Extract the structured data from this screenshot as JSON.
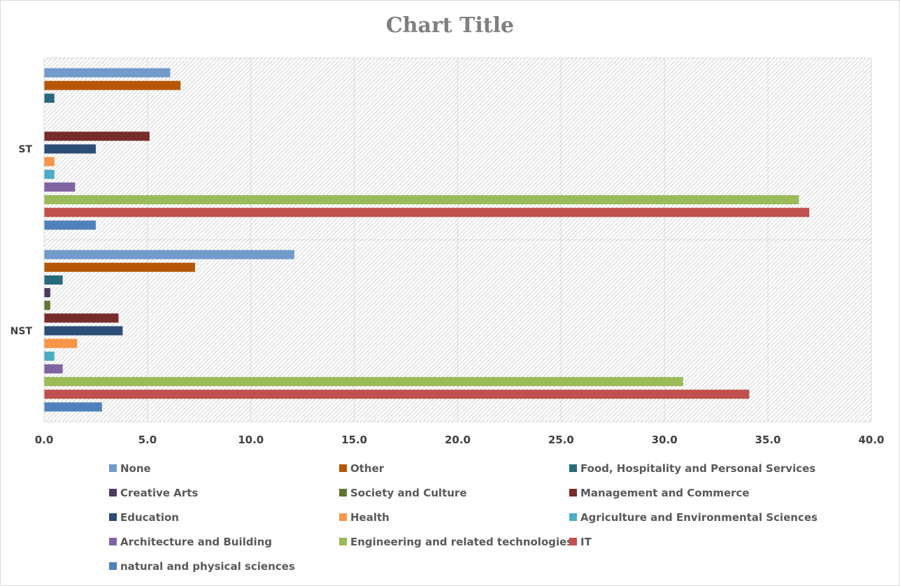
{
  "chart_data": {
    "type": "bar",
    "orientation": "horizontal",
    "title": "Chart Title",
    "categories": [
      "NST",
      "ST"
    ],
    "xlim": [
      0,
      40
    ],
    "x_ticks": [
      "0.0",
      "5.0",
      "10.0",
      "15.0",
      "20.0",
      "25.0",
      "30.0",
      "35.0",
      "40.0"
    ],
    "grid": true,
    "legend_position": "bottom",
    "series": [
      {
        "name": "natural and physical sciences",
        "color": "#4f81bd",
        "values": [
          2.8,
          2.5
        ]
      },
      {
        "name": "IT",
        "color": "#c0504d",
        "values": [
          34.1,
          37.0
        ]
      },
      {
        "name": "Engineering and related technologies",
        "color": "#9bbb59",
        "values": [
          30.9,
          36.5
        ]
      },
      {
        "name": "Architecture and Building",
        "color": "#8064a2",
        "values": [
          0.9,
          1.5
        ]
      },
      {
        "name": "Agriculture and Environmental Sciences",
        "color": "#4bacc6",
        "values": [
          0.5,
          0.5
        ]
      },
      {
        "name": "Health",
        "color": "#f79646",
        "values": [
          1.6,
          0.5
        ]
      },
      {
        "name": "Education",
        "color": "#2c4d75",
        "values": [
          3.8,
          2.5
        ]
      },
      {
        "name": "Management and Commerce",
        "color": "#772c2a",
        "values": [
          3.6,
          5.1
        ]
      },
      {
        "name": "Society and Culture",
        "color": "#5f7530",
        "values": [
          0.3,
          0
        ]
      },
      {
        "name": "Creative Arts",
        "color": "#4d3b62",
        "values": [
          0.3,
          0
        ]
      },
      {
        "name": "Food, Hospitality and Personal Services",
        "color": "#276a7c",
        "values": [
          0.9,
          0.5
        ]
      },
      {
        "name": "Other",
        "color": "#b65708",
        "values": [
          7.3,
          6.6
        ]
      },
      {
        "name": "None",
        "color": "#729aca",
        "values": [
          12.1,
          6.1
        ]
      }
    ],
    "legend_order": [
      "None",
      "Other",
      "Food, Hospitality and Personal Services",
      "Creative Arts",
      "Society and Culture",
      "Management and Commerce",
      "Education",
      "Health",
      "Agriculture and Environmental Sciences",
      "Architecture and Building",
      "Engineering and related technologies",
      "IT",
      "natural and physical sciences"
    ]
  }
}
